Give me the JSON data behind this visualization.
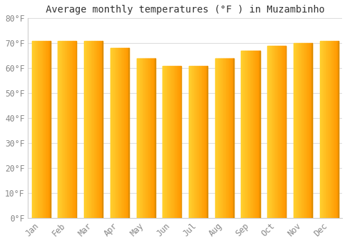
{
  "title": "Average monthly temperatures (°F ) in Muzambinho",
  "months": [
    "Jan",
    "Feb",
    "Mar",
    "Apr",
    "May",
    "Jun",
    "Jul",
    "Aug",
    "Sep",
    "Oct",
    "Nov",
    "Dec"
  ],
  "values": [
    71,
    71,
    71,
    68,
    64,
    61,
    61,
    64,
    67,
    69,
    70,
    71
  ],
  "bar_color_main": "#FFA500",
  "bar_color_light": "#FFD060",
  "bar_edge_color": "#CC8800",
  "background_color": "#FFFFFF",
  "plot_bg_color": "#FFFFFF",
  "grid_color": "#DDDDDD",
  "text_color": "#888888",
  "ylim": [
    0,
    80
  ],
  "ytick_step": 10,
  "title_fontsize": 10,
  "tick_fontsize": 8.5,
  "bar_width": 0.72
}
